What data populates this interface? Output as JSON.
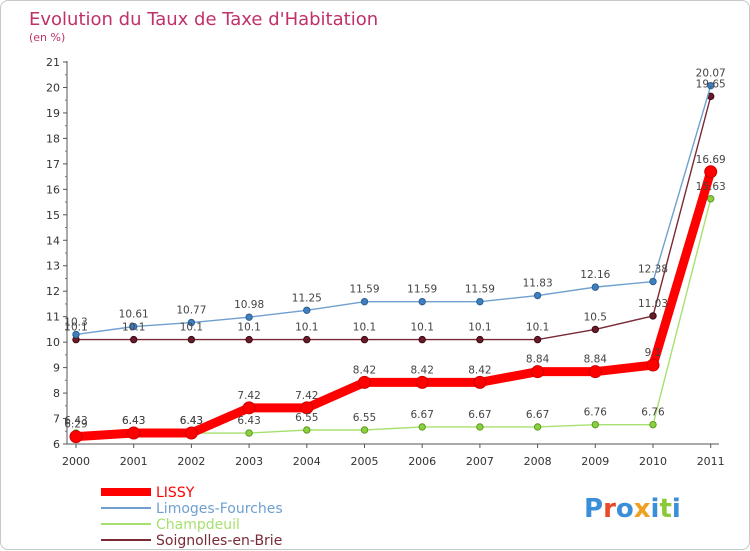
{
  "chart_data": {
    "type": "line",
    "title": "Evolution du Taux de Taxe d'Habitation",
    "subtitle": "(en %)",
    "x": [
      "2000",
      "2001",
      "2002",
      "2003",
      "2004",
      "2005",
      "2006",
      "2007",
      "2008",
      "2009",
      "2010",
      "2011"
    ],
    "ylim": [
      6,
      21
    ],
    "yticks": [
      "6",
      "7",
      "8",
      "9",
      "10",
      "11",
      "12",
      "13",
      "14",
      "15",
      "16",
      "17",
      "18",
      "19",
      "20",
      "21"
    ],
    "grid": false,
    "legend_position": "bottom-left",
    "series": [
      {
        "name": "LISSY",
        "color": "#ff0000",
        "values": [
          6.29,
          6.43,
          6.43,
          7.42,
          7.42,
          8.42,
          8.42,
          8.42,
          8.84,
          8.84,
          9.1,
          16.69
        ],
        "labels": [
          "6.29",
          "6.43",
          "6.43",
          "7.42",
          "7.42",
          "8.42",
          "8.42",
          "8.42",
          "8.84",
          "8.84",
          "9.1",
          "16.69"
        ]
      },
      {
        "name": "Limoges-Fourches",
        "color": "#6fa0d0",
        "values": [
          10.3,
          10.61,
          10.77,
          10.98,
          11.25,
          11.59,
          11.59,
          11.59,
          11.83,
          12.16,
          12.38,
          20.07
        ],
        "labels": [
          "10.3",
          "10.61",
          "10.77",
          "10.98",
          "11.25",
          "11.59",
          "11.59",
          "11.59",
          "11.83",
          "12.16",
          "12.38",
          "20.07"
        ]
      },
      {
        "name": "Champdeuil",
        "color": "#a8e070",
        "values": [
          6.43,
          6.43,
          6.43,
          6.43,
          6.55,
          6.55,
          6.67,
          6.67,
          6.67,
          6.76,
          6.76,
          15.63
        ],
        "labels": [
          "6.43",
          "6.43",
          "6.43",
          "6.43",
          "6.55",
          "6.55",
          "6.67",
          "6.67",
          "6.67",
          "6.76",
          "6.76",
          "15.63"
        ]
      },
      {
        "name": "Soignolles-en-Brie",
        "color": "#7a2a35",
        "values": [
          10.1,
          10.1,
          10.1,
          10.1,
          10.1,
          10.1,
          10.1,
          10.1,
          10.1,
          10.5,
          11.03,
          19.65
        ],
        "labels": [
          "10.1",
          "10.1",
          "10.1",
          "10.1",
          "10.1",
          "10.1",
          "10.1",
          "10.1",
          "10.1",
          "10.5",
          "11.03",
          "19.65"
        ]
      }
    ]
  },
  "logo": {
    "text": "Proxiti",
    "letter_colors": [
      "#3a8fd8",
      "#e84a2a",
      "#3a8fd8",
      "#f0a020",
      "#3a8fd8",
      "#8cc83a",
      "#3a8fd8"
    ]
  }
}
